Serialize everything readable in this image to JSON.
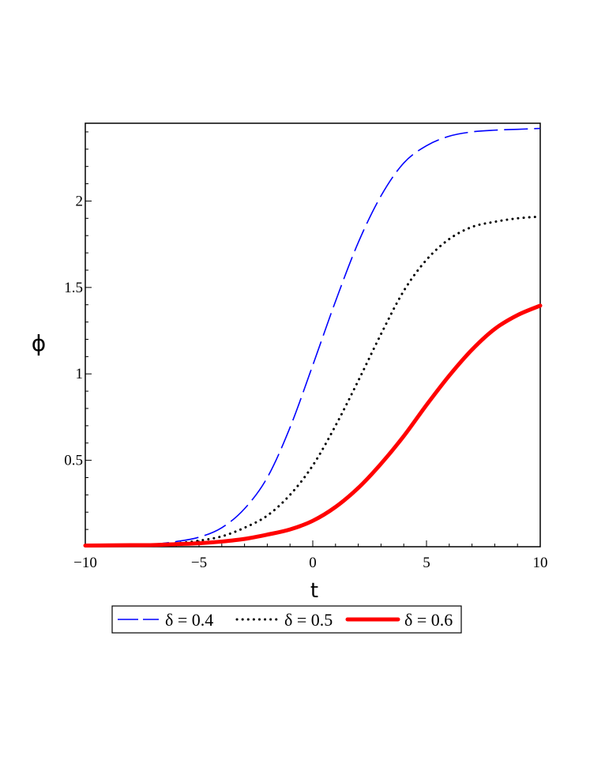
{
  "chart_data": {
    "type": "line",
    "xlabel": "t",
    "ylabel": "ϕ",
    "xlim": [
      -10,
      10
    ],
    "ylim": [
      0,
      2.45
    ],
    "x_ticks": [
      -10,
      -5,
      0,
      5,
      10
    ],
    "x_tick_labels": [
      "−10",
      "−5",
      "0",
      "5",
      "10"
    ],
    "y_ticks": [
      0.5,
      1,
      1.5,
      2
    ],
    "y_tick_labels": [
      "0.5",
      "1",
      "1.5",
      "2"
    ],
    "grid": false,
    "legend_placement": "bottom",
    "x": [
      -10,
      -9,
      -8,
      -7,
      -6,
      -5,
      -4,
      -3,
      -2,
      -1,
      0,
      1,
      2,
      3,
      4,
      5,
      6,
      7,
      8,
      9,
      10
    ],
    "series": [
      {
        "name": "δ = 0.4",
        "color": "#0000ff",
        "style": "dash",
        "values": [
          0.007,
          0.008,
          0.01,
          0.015,
          0.03,
          0.055,
          0.11,
          0.22,
          0.4,
          0.69,
          1.05,
          1.42,
          1.76,
          2.03,
          2.22,
          2.32,
          2.375,
          2.4,
          2.41,
          2.415,
          2.42
        ]
      },
      {
        "name": "δ = 0.5",
        "color": "#000000",
        "style": "dot",
        "values": [
          0.007,
          0.008,
          0.009,
          0.012,
          0.02,
          0.035,
          0.06,
          0.11,
          0.18,
          0.3,
          0.47,
          0.7,
          0.96,
          1.23,
          1.48,
          1.66,
          1.78,
          1.85,
          1.88,
          1.9,
          1.91
        ]
      },
      {
        "name": "δ = 0.6",
        "color": "#ff0000",
        "style": "solid",
        "values": [
          0.007,
          0.008,
          0.009,
          0.01,
          0.015,
          0.02,
          0.03,
          0.045,
          0.07,
          0.1,
          0.15,
          0.23,
          0.34,
          0.48,
          0.64,
          0.82,
          0.99,
          1.14,
          1.26,
          1.34,
          1.395
        ]
      }
    ]
  }
}
